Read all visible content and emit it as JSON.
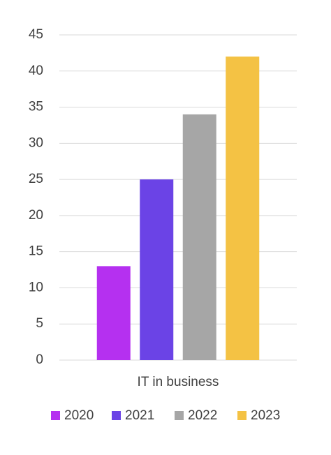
{
  "chart_data": {
    "type": "bar",
    "categories": [
      "IT in business"
    ],
    "series": [
      {
        "name": "2020",
        "color": "#b530f0",
        "values": [
          13
        ]
      },
      {
        "name": "2021",
        "color": "#6b43e6",
        "values": [
          25
        ]
      },
      {
        "name": "2022",
        "color": "#a6a6a6",
        "values": [
          34
        ]
      },
      {
        "name": "2023",
        "color": "#f4c244",
        "values": [
          42
        ]
      }
    ],
    "ylim": [
      0,
      45
    ],
    "yticks": [
      0,
      5,
      10,
      15,
      20,
      25,
      30,
      35,
      40,
      45
    ],
    "grid": true,
    "legend": "bottom"
  }
}
